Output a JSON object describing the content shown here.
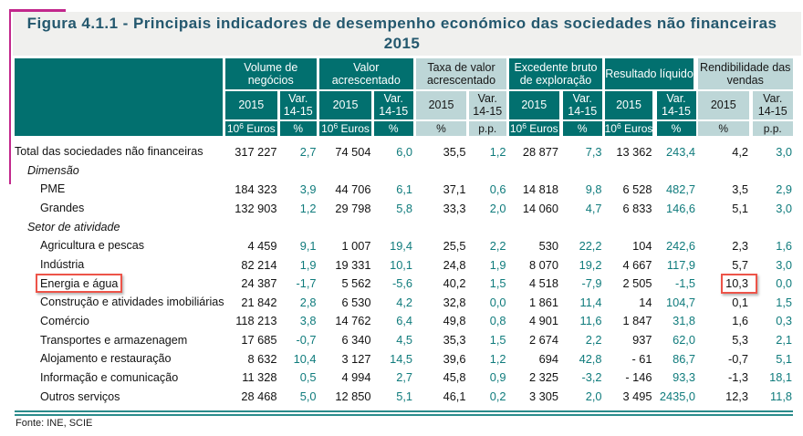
{
  "title": {
    "line1": "Figura 4.1.1 - Principais indicadores de desempenho económico das sociedades não financeiras",
    "line2": "2015"
  },
  "header": {
    "groups": [
      {
        "line1": "Volume de",
        "line2": "negócios"
      },
      {
        "line1": "Valor",
        "line2": "acrescentado"
      },
      {
        "line1": "Taxa de valor",
        "line2": "acrescentado"
      },
      {
        "line1": "Excedente bruto",
        "line2": "de exploração"
      },
      {
        "line1": "Resultado líquido",
        "line2": ""
      },
      {
        "line1": "Rendibilidade das",
        "line2": "vendas"
      }
    ],
    "year_label": "2015",
    "var_line1": "Var.",
    "var_line2": "14-15",
    "units": {
      "money_base": "10",
      "money_sup": "6",
      "money_suffix": " Euros",
      "percent": "%",
      "pp": "p.p."
    }
  },
  "rows": [
    {
      "label": "Total das sociedades não financeiras",
      "indent": 0,
      "italic": false,
      "values": [
        "317 227",
        "2,7",
        "74 504",
        "6,0",
        "35,5",
        "1,2",
        "28 877",
        "7,3",
        "13 362",
        "243,4",
        "4,2",
        "3,0"
      ]
    },
    {
      "label": "Dimensão",
      "indent": 1,
      "italic": true,
      "values": []
    },
    {
      "label": "PME",
      "indent": 2,
      "italic": false,
      "values": [
        "184 323",
        "3,9",
        "44 706",
        "6,1",
        "37,1",
        "0,6",
        "14 818",
        "9,8",
        "6 528",
        "482,7",
        "3,5",
        "2,9"
      ]
    },
    {
      "label": "Grandes",
      "indent": 2,
      "italic": false,
      "values": [
        "132 903",
        "1,2",
        "29 798",
        "5,8",
        "33,3",
        "2,0",
        "14 060",
        "4,7",
        "6 833",
        "146,6",
        "5,1",
        "3,0"
      ]
    },
    {
      "label": "Setor de atividade",
      "indent": 1,
      "italic": true,
      "values": []
    },
    {
      "label": "Agricultura e pescas",
      "indent": 2,
      "italic": false,
      "values": [
        "4 459",
        "9,1",
        "1 007",
        "19,4",
        "25,5",
        "2,2",
        "530",
        "22,2",
        "104",
        "242,6",
        "2,3",
        "1,6"
      ]
    },
    {
      "label": "Indústria",
      "indent": 2,
      "italic": false,
      "values": [
        "82 214",
        "1,9",
        "19 331",
        "10,1",
        "24,8",
        "1,9",
        "8 070",
        "19,2",
        "4 667",
        "117,9",
        "5,7",
        "3,0"
      ]
    },
    {
      "label": "Energia e água",
      "indent": 2,
      "italic": false,
      "highlight_label": true,
      "highlight_value_index": 10,
      "values": [
        "24 387",
        "-1,7",
        "5 562",
        "-5,6",
        "40,2",
        "1,5",
        "4 518",
        "-7,9",
        "2 505",
        "-1,5",
        "10,3",
        "0,0"
      ]
    },
    {
      "label": "Construção e atividades imobiliárias",
      "indent": 2,
      "italic": false,
      "values": [
        "21 842",
        "2,8",
        "6 530",
        "4,2",
        "32,8",
        "0,0",
        "1 861",
        "11,4",
        "14",
        "104,7",
        "0,1",
        "1,5"
      ]
    },
    {
      "label": "Comércio",
      "indent": 2,
      "italic": false,
      "values": [
        "118 213",
        "3,8",
        "14 762",
        "6,4",
        "49,8",
        "0,8",
        "4 901",
        "11,6",
        "1 847",
        "31,8",
        "1,6",
        "0,3"
      ]
    },
    {
      "label": "Transportes e armazenagem",
      "indent": 2,
      "italic": false,
      "values": [
        "17 685",
        "-0,7",
        "6 340",
        "4,5",
        "35,3",
        "1,5",
        "2 674",
        "2,2",
        "937",
        "62,0",
        "5,3",
        "2,1"
      ]
    },
    {
      "label": "Alojamento e restauração",
      "indent": 2,
      "italic": false,
      "values": [
        "8 632",
        "10,4",
        "3 127",
        "14,5",
        "39,6",
        "1,2",
        "694",
        "42,8",
        "- 61",
        "86,7",
        "-0,7",
        "5,1"
      ]
    },
    {
      "label": "Informação e comunicação",
      "indent": 2,
      "italic": false,
      "values": [
        "11 328",
        "0,5",
        "4 994",
        "2,7",
        "45,8",
        "0,9",
        "2 325",
        "-3,2",
        "- 146",
        "93,3",
        "-1,3",
        "18,1"
      ]
    },
    {
      "label": "Outros serviços",
      "indent": 2,
      "italic": false,
      "values": [
        "28 468",
        "5,0",
        "12 850",
        "5,1",
        "46,1",
        "0,2",
        "3 305",
        "2,0",
        "3 495",
        "2435,0",
        "12,3",
        "11,8"
      ]
    }
  ],
  "footer": {
    "source": "Fonte: INE, SCIE"
  },
  "colors": {
    "header_dark": "#02706F",
    "header_light": "#BDD6D7",
    "variation_text": "#0F7B7C",
    "title_text": "#24586E",
    "title_background": "#F0F0EE",
    "highlight_red": "#ED5449",
    "crop_mark_magenta": "#C2278C",
    "bottom_rule_teal": "#2B8B8B"
  },
  "chart_data": {
    "type": "table",
    "title": "Figura 4.1.1 - Principais indicadores de desempenho económico das sociedades não financeiras 2015",
    "column_groups": [
      "Volume de negócios",
      "Valor acrescentado",
      "Taxa de valor acrescentado",
      "Excedente bruto de exploração",
      "Resultado líquido",
      "Rendibilidade das vendas"
    ],
    "columns": [
      "2015 (10^6 Euros)",
      "Var. 14-15 (%)",
      "2015 (10^6 Euros)",
      "Var. 14-15 (%)",
      "2015 (%)",
      "Var. 14-15 (p.p.)",
      "2015 (10^6 Euros)",
      "Var. 14-15 (%)",
      "2015 (10^6 Euros)",
      "Var. 14-15 (%)",
      "2015 (%)",
      "Var. 14-15 (p.p.)"
    ],
    "categories": [
      "Total das sociedades não financeiras",
      "PME",
      "Grandes",
      "Agricultura e pescas",
      "Indústria",
      "Energia e água",
      "Construção e atividades imobiliárias",
      "Comércio",
      "Transportes e armazenagem",
      "Alojamento e restauração",
      "Informação e comunicação",
      "Outros serviços"
    ],
    "values": [
      [
        317227,
        2.7,
        74504,
        6.0,
        35.5,
        1.2,
        28877,
        7.3,
        13362,
        243.4,
        4.2,
        3.0
      ],
      [
        184323,
        3.9,
        44706,
        6.1,
        37.1,
        0.6,
        14818,
        9.8,
        6528,
        482.7,
        3.5,
        2.9
      ],
      [
        132903,
        1.2,
        29798,
        5.8,
        33.3,
        2.0,
        14060,
        4.7,
        6833,
        146.6,
        5.1,
        3.0
      ],
      [
        4459,
        9.1,
        1007,
        19.4,
        25.5,
        2.2,
        530,
        22.2,
        104,
        242.6,
        2.3,
        1.6
      ],
      [
        82214,
        1.9,
        19331,
        10.1,
        24.8,
        1.9,
        8070,
        19.2,
        4667,
        117.9,
        5.7,
        3.0
      ],
      [
        24387,
        -1.7,
        5562,
        -5.6,
        40.2,
        1.5,
        4518,
        -7.9,
        2505,
        -1.5,
        10.3,
        0.0
      ],
      [
        21842,
        2.8,
        6530,
        4.2,
        32.8,
        0.0,
        1861,
        11.4,
        14,
        104.7,
        0.1,
        1.5
      ],
      [
        118213,
        3.8,
        14762,
        6.4,
        49.8,
        0.8,
        4901,
        11.6,
        1847,
        31.8,
        1.6,
        0.3
      ],
      [
        17685,
        -0.7,
        6340,
        4.5,
        35.3,
        1.5,
        2674,
        2.2,
        937,
        62.0,
        5.3,
        2.1
      ],
      [
        8632,
        10.4,
        3127,
        14.5,
        39.6,
        1.2,
        694,
        42.8,
        -61,
        86.7,
        -0.7,
        5.1
      ],
      [
        11328,
        0.5,
        4994,
        2.7,
        45.8,
        0.9,
        2325,
        -3.2,
        -146,
        93.3,
        -1.3,
        18.1
      ],
      [
        28468,
        5.0,
        12850,
        5.1,
        46.1,
        0.2,
        3305,
        2.0,
        3495,
        2435.0,
        12.3,
        11.8
      ]
    ],
    "source_note": "Fonte: INE, SCIE"
  }
}
